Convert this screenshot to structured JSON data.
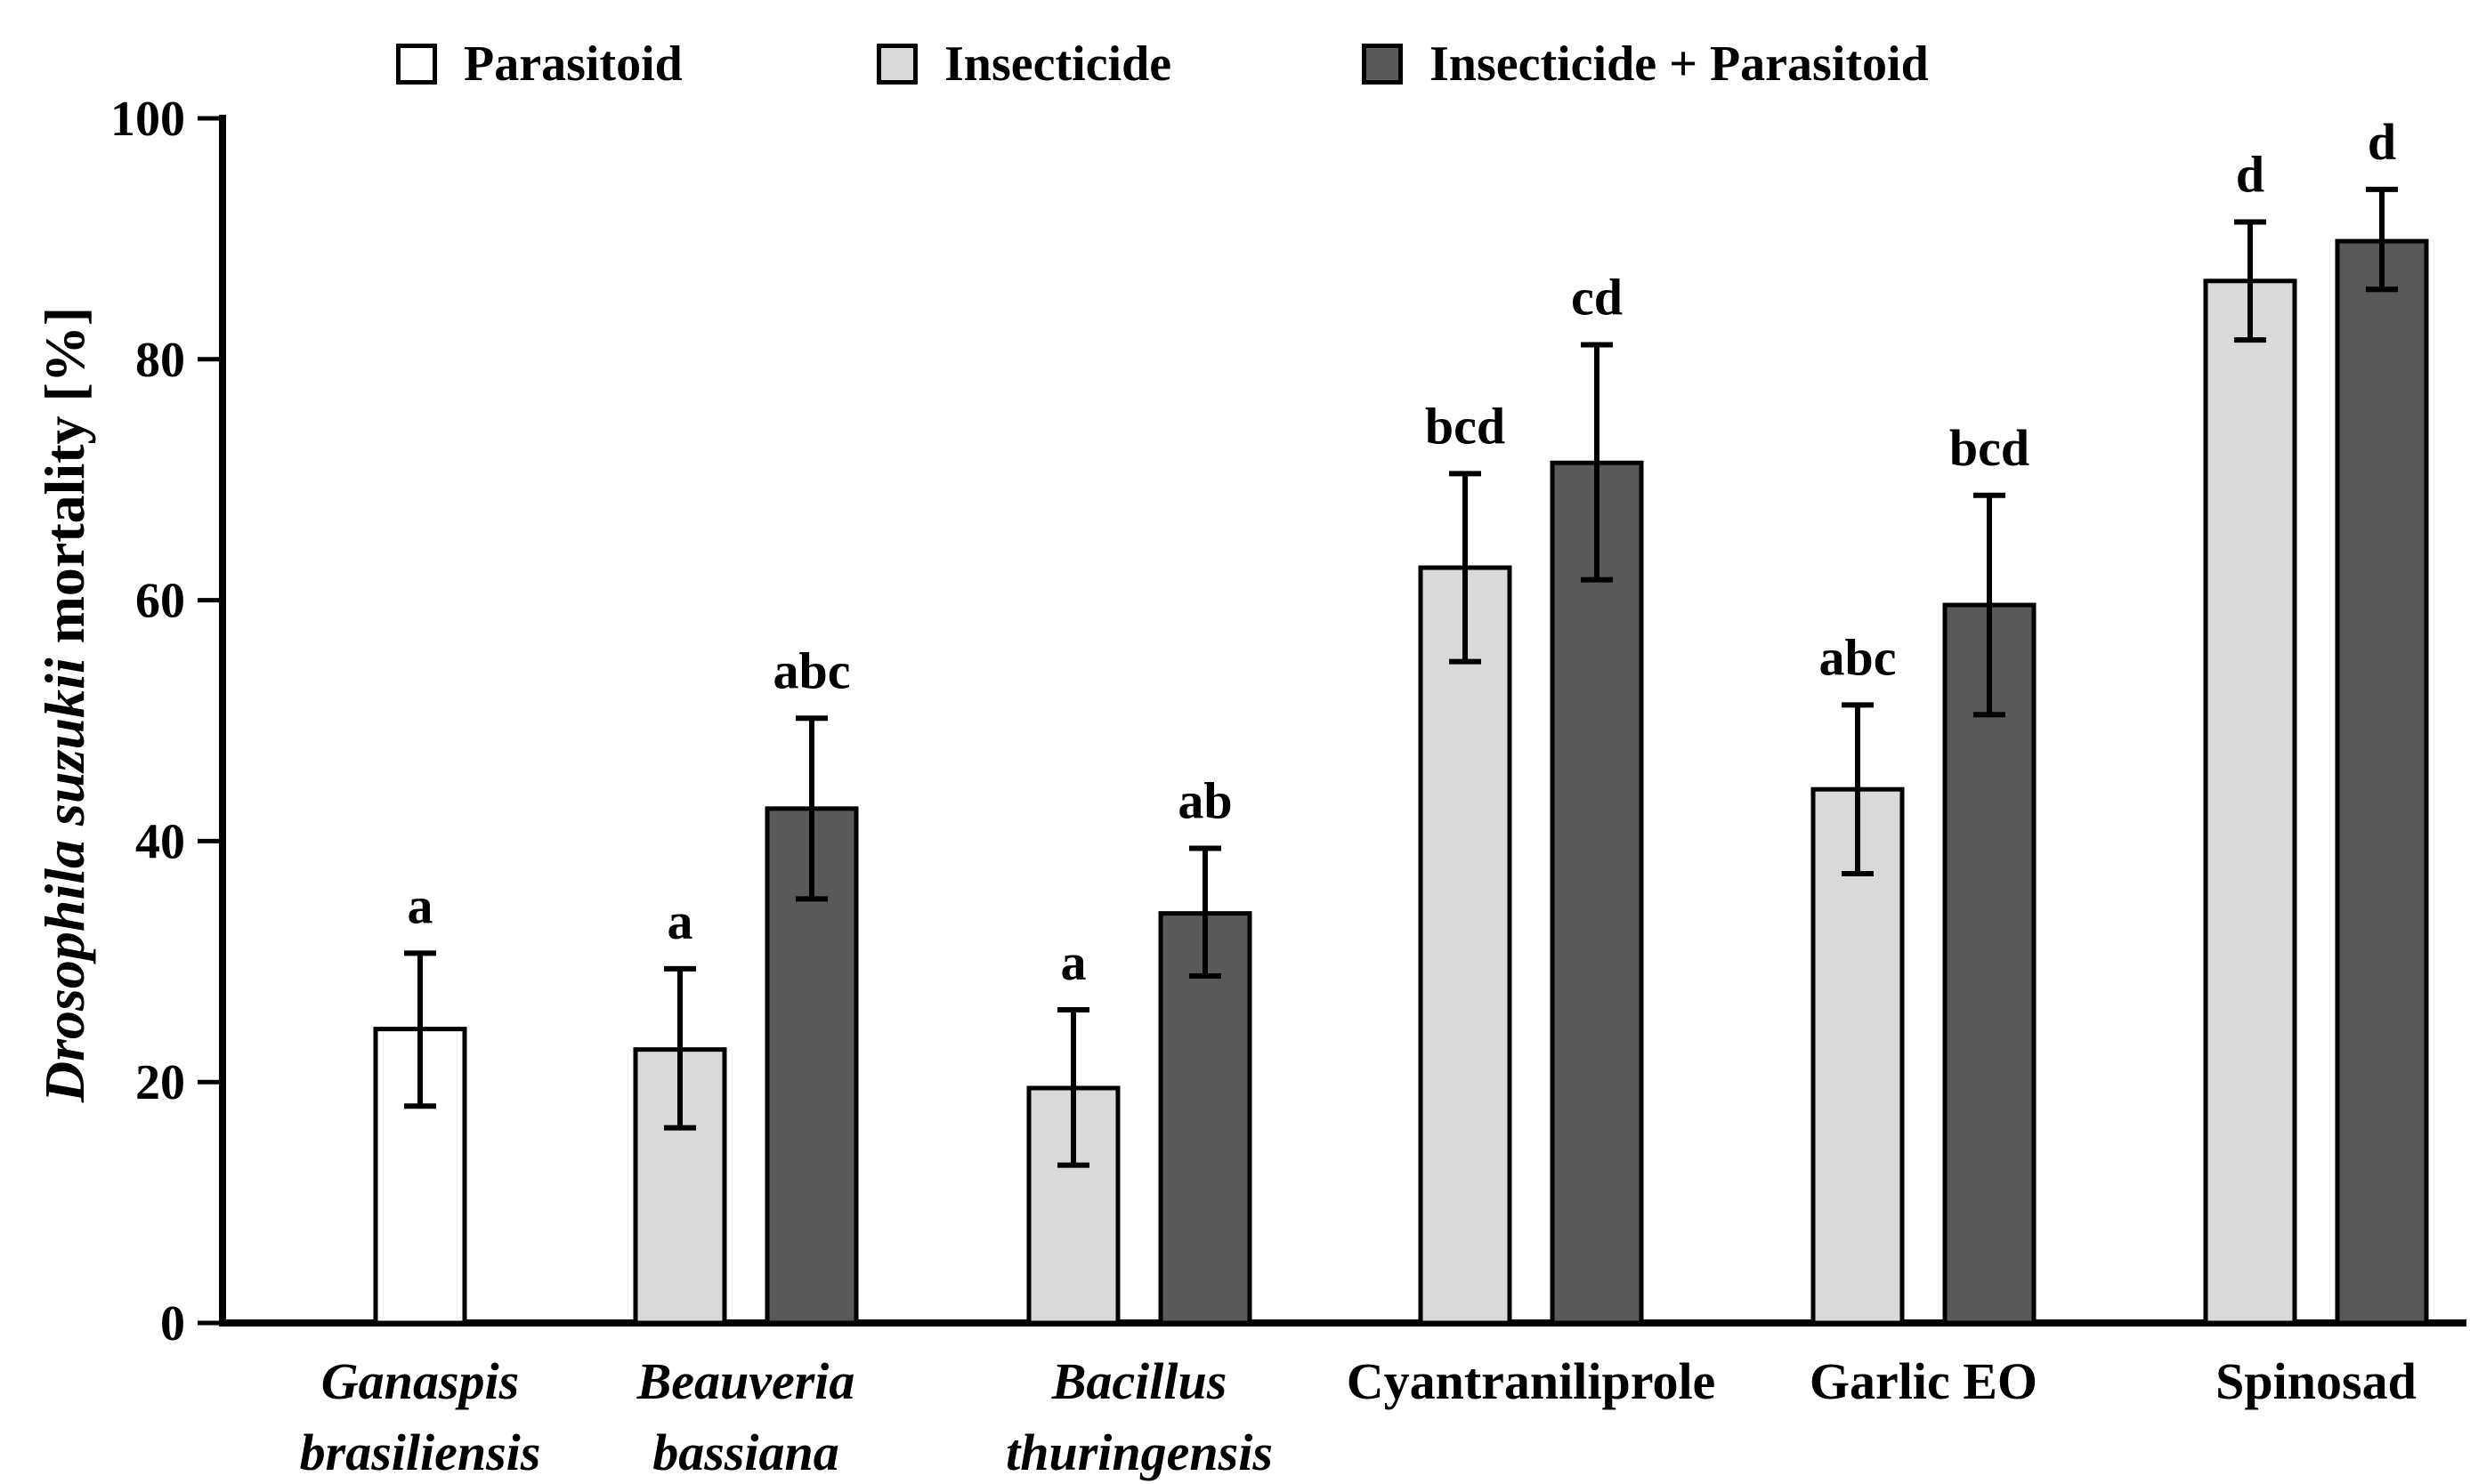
{
  "colors": {
    "parasitoid_fill": "#ffffff",
    "insecticide_fill": "#d9d9d9",
    "combo_fill": "#595959",
    "axis": "#000000",
    "background": "#ffffff"
  },
  "chart_data": {
    "type": "bar",
    "title": "",
    "ylabel_italic": "Drosophila suzukii",
    "ylabel_rest": " mortality [%]",
    "ylim": [
      0,
      100
    ],
    "y_ticks": [
      0,
      20,
      40,
      60,
      80,
      100
    ],
    "grid": false,
    "legend_position": "top",
    "error_bars": true,
    "categories": [
      {
        "lines": [
          "Ganaspis",
          "brasiliensis"
        ],
        "italic": true
      },
      {
        "lines": [
          "Beauveria",
          "bassiana"
        ],
        "italic": true
      },
      {
        "lines": [
          "Bacillus",
          "thuringensis"
        ],
        "italic": true
      },
      {
        "lines": [
          "Cyantraniliprole"
        ],
        "italic": false
      },
      {
        "lines": [
          "Garlic EO"
        ],
        "italic": false
      },
      {
        "lines": [
          "Spinosad"
        ],
        "italic": false
      }
    ],
    "series": [
      {
        "name": "Parasitoid",
        "color": "#ffffff",
        "values": [
          24.4,
          null,
          null,
          null,
          null,
          null
        ],
        "err_hi": [
          30.7,
          null,
          null,
          null,
          null,
          null
        ],
        "err_lo": [
          18.0,
          null,
          null,
          null,
          null,
          null
        ],
        "letters": [
          "a",
          null,
          null,
          null,
          null,
          null
        ]
      },
      {
        "name": "Insecticide",
        "color": "#d9d9d9",
        "values": [
          null,
          22.7,
          19.5,
          62.7,
          44.3,
          86.5
        ],
        "err_hi": [
          null,
          29.4,
          26.0,
          70.5,
          51.3,
          91.4
        ],
        "err_lo": [
          null,
          16.2,
          13.1,
          54.9,
          37.3,
          81.6
        ],
        "letters": [
          null,
          "a",
          "a",
          "bcd",
          "abc",
          "d"
        ]
      },
      {
        "name": "Insecticide + Parasitoid",
        "color": "#595959",
        "values": [
          null,
          42.7,
          34.0,
          71.4,
          59.6,
          89.8
        ],
        "err_hi": [
          null,
          50.2,
          39.4,
          81.2,
          68.7,
          94.1
        ],
        "err_lo": [
          null,
          35.2,
          28.8,
          61.7,
          50.5,
          85.8
        ],
        "letters": [
          null,
          "abc",
          "ab",
          "cd",
          "bcd",
          "d"
        ]
      }
    ]
  }
}
